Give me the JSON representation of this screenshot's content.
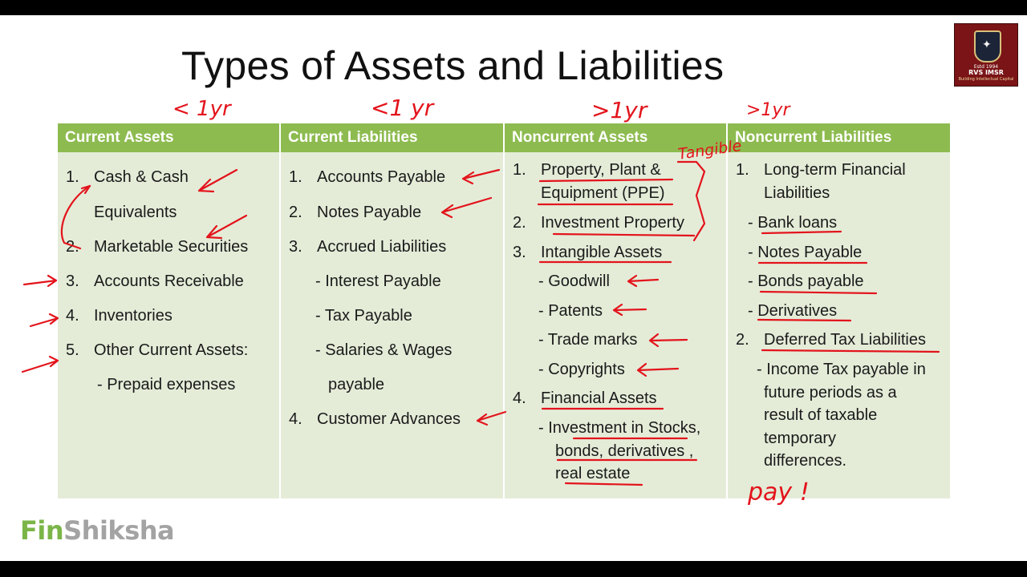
{
  "slide": {
    "title": "Types of Assets and Liabilities",
    "brand": {
      "part1": "Fin",
      "part2": "Shiksha"
    },
    "logo": {
      "line1": "Estd 1994",
      "line2": "RVS IMSR",
      "line3": "Building Intellectual Capital",
      "icon": "crest-icon"
    }
  },
  "columns": [
    {
      "header": "Current Assets",
      "items": [
        {
          "num": "1.",
          "text": "Cash & Cash"
        },
        {
          "num": "",
          "text": "Equivalents"
        },
        {
          "num": "2.",
          "text": "Marketable Securities"
        },
        {
          "num": "3.",
          "text": "Accounts Receivable"
        },
        {
          "num": "4.",
          "text": "Inventories"
        },
        {
          "num": "5.",
          "text": "Other Current Assets:"
        },
        {
          "num": "",
          "text": "- Prepaid expenses"
        }
      ]
    },
    {
      "header": "Current Liabilities",
      "items": [
        {
          "num": "1.",
          "text": "Accounts Payable"
        },
        {
          "num": "2.",
          "text": "Notes Payable"
        },
        {
          "num": "3.",
          "text": "Accrued Liabilities"
        },
        {
          "num": "",
          "text": "- Interest Payable"
        },
        {
          "num": "",
          "text": "- Tax Payable"
        },
        {
          "num": "",
          "text": "- Salaries & Wages"
        },
        {
          "num": "",
          "text": "payable"
        },
        {
          "num": "4.",
          "text": "Customer Advances"
        }
      ]
    },
    {
      "header": "Noncurrent Assets",
      "items": [
        {
          "num": "1.",
          "text": "Property, Plant &"
        },
        {
          "num": "",
          "text": "Equipment (PPE)"
        },
        {
          "num": "2.",
          "text": "Investment Property"
        },
        {
          "num": "3.",
          "text": "Intangible Assets"
        },
        {
          "num": "",
          "text": "- Goodwill"
        },
        {
          "num": "",
          "text": "- Patents"
        },
        {
          "num": "",
          "text": "- Trade marks"
        },
        {
          "num": "",
          "text": "- Copyrights"
        },
        {
          "num": "4.",
          "text": "Financial Assets"
        },
        {
          "num": "",
          "text": "- Investment in Stocks,"
        },
        {
          "num": "",
          "text": "bonds, derivatives ,"
        },
        {
          "num": "",
          "text": "real estate"
        }
      ]
    },
    {
      "header": "Noncurrent Liabilities",
      "items": [
        {
          "num": "1.",
          "text": "Long-term Financial"
        },
        {
          "num": "",
          "text": "Liabilities"
        },
        {
          "num": "",
          "text": "- Bank loans"
        },
        {
          "num": "",
          "text": "- Notes Payable"
        },
        {
          "num": "",
          "text": "- Bonds payable"
        },
        {
          "num": "",
          "text": "- Derivatives"
        },
        {
          "num": "2.",
          "text": "Deferred Tax Liabilities"
        },
        {
          "num": "",
          "text": "- Income Tax payable in"
        },
        {
          "num": "",
          "text": "future periods as a"
        },
        {
          "num": "",
          "text": "result of taxable"
        },
        {
          "num": "",
          "text": "temporary"
        },
        {
          "num": "",
          "text": "differences."
        }
      ]
    }
  ],
  "annotations": {
    "col1": "< 1yr",
    "col2": "<1 yr",
    "col3": ">1yr",
    "col4": ">1yr",
    "tangible": "Tangible",
    "pay": "pay !",
    "color": "#e3141c"
  }
}
